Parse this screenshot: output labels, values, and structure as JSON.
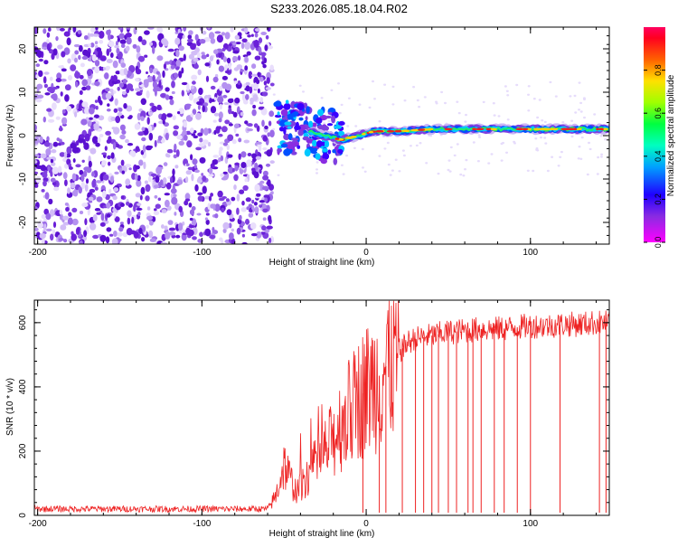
{
  "title": "S233.2026.085.18.04.R02",
  "colors": {
    "snr_line": "#ee2222",
    "axis": "#000000",
    "spectrogram_ramp": [
      "#ffffff",
      "#d8c8f8",
      "#8a2be2",
      "#3a00ff",
      "#0050ff",
      "#00c8ff",
      "#00e0a0",
      "#44ff00",
      "#ffd000",
      "#ff6000",
      "#ff0000",
      "#ff0090"
    ]
  },
  "chart_data": [
    {
      "type": "heatmap",
      "name": "spectrogram",
      "xlabel": "Height of straight line (km)",
      "ylabel": "Frequency (Hz)",
      "xlim": [
        -202,
        148
      ],
      "ylim": [
        -25,
        25
      ],
      "xticks": [
        -200,
        -100,
        0,
        100
      ],
      "xtick_labels": [
        "-200",
        "-100",
        "0",
        "100"
      ],
      "yticks": [
        20,
        10,
        0,
        -10,
        -20
      ],
      "ytick_labels": [
        "20",
        "10",
        "0",
        "-10",
        "-20"
      ],
      "signal_track": {
        "x_start_km": -55,
        "x": [
          -55,
          -45,
          -35,
          -25,
          -15,
          -5,
          5,
          20,
          40,
          60,
          80,
          100,
          120,
          148
        ],
        "center_hz": [
          2,
          2,
          1,
          0,
          -1,
          0,
          1,
          1,
          1.5,
          1.5,
          1.5,
          1.5,
          1.5,
          1.5
        ]
      },
      "noise_region_km": [
        -202,
        -57
      ],
      "colorbar": {
        "label": "Normalized spectral amplitude",
        "range": [
          0,
          1
        ],
        "ticks": [
          0.0,
          0.2,
          0.4,
          0.6,
          0.8
        ],
        "tick_labels": [
          "0.0",
          "0.2",
          "0.4",
          "0.6",
          "0.8"
        ]
      }
    },
    {
      "type": "line",
      "name": "snr",
      "xlabel": "Height of straight line (km)",
      "ylabel": "SNR (10 * v/v)",
      "xlim": [
        -202,
        148
      ],
      "ylim": [
        0,
        670
      ],
      "xticks": [
        -200,
        -100,
        0,
        100
      ],
      "xtick_labels": [
        "-200",
        "-100",
        "0",
        "100"
      ],
      "yticks": [
        0,
        200,
        400,
        600
      ],
      "ytick_labels": [
        "0",
        "200",
        "400",
        "600"
      ],
      "series": [
        {
          "name": "SNR",
          "x": [
            -202,
            -150,
            -100,
            -60,
            -55,
            -50,
            -46,
            -42,
            -38,
            -34,
            -30,
            -26,
            -22,
            -18,
            -14,
            -10,
            -6,
            -2,
            2,
            6,
            10,
            14,
            18,
            22,
            26,
            30,
            40,
            50,
            60,
            70,
            80,
            90,
            100,
            110,
            120,
            130,
            140,
            148
          ],
          "values": [
            20,
            20,
            20,
            20,
            60,
            160,
            110,
            70,
            110,
            140,
            160,
            190,
            220,
            260,
            300,
            320,
            350,
            380,
            400,
            420,
            450,
            480,
            500,
            520,
            540,
            550,
            560,
            570,
            575,
            580,
            580,
            585,
            590,
            590,
            595,
            595,
            600,
            600
          ]
        }
      ],
      "dropout_x_km": [
        -2,
        8,
        12,
        22,
        30,
        35,
        40,
        44,
        50,
        55,
        62,
        65,
        70,
        78,
        84,
        92,
        100,
        118,
        142,
        146
      ]
    }
  ]
}
